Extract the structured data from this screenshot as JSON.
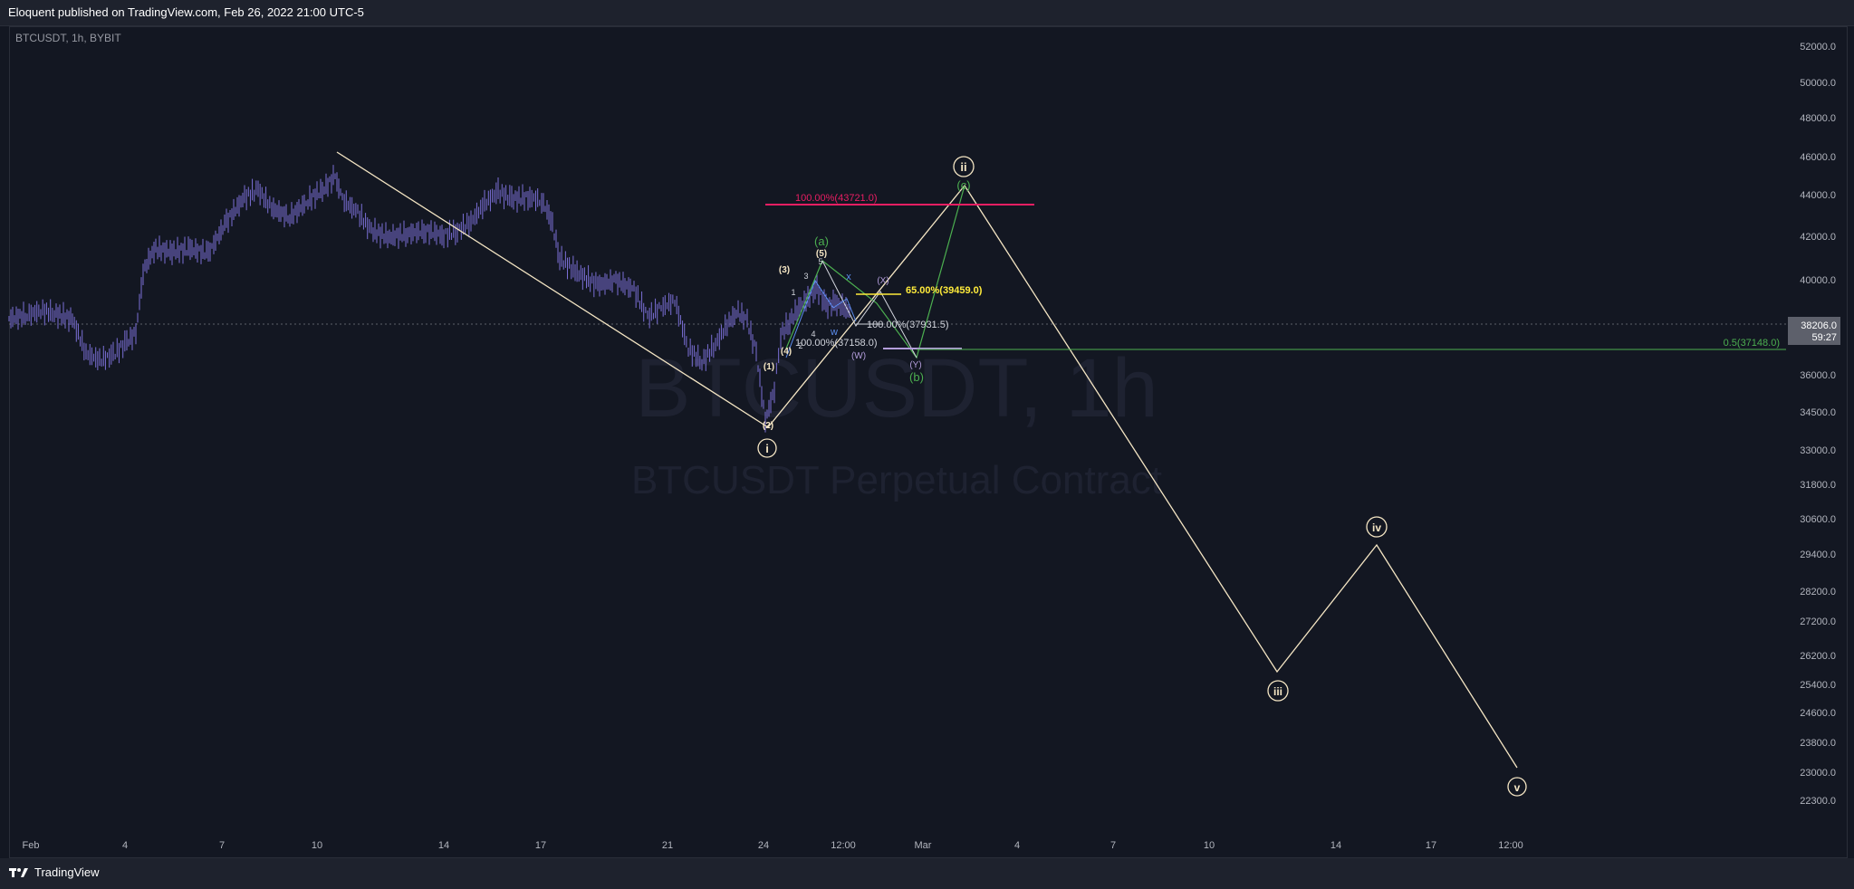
{
  "header": {
    "title": "Eloquent published on TradingView.com, Feb 26, 2022 21:00 UTC-5"
  },
  "symbol_info": "BTCUSDT, 1h, BYBIT",
  "watermark": {
    "symbol": "BTCUSDT, 1h",
    "description": "BTCUSDT Perpetual Contract"
  },
  "price_axis": {
    "labels": [
      "52000.0",
      "50000.0",
      "48000.0",
      "46000.0",
      "44000.0",
      "42000.0",
      "40000.0",
      "36000.0",
      "34500.0",
      "33000.0",
      "31800.0",
      "30600.0",
      "29400.0",
      "28200.0",
      "27200.0",
      "26200.0",
      "25400.0",
      "24600.0",
      "23800.0",
      "23000.0",
      "22300.0"
    ],
    "last_price": "38206.0",
    "countdown": "59:27"
  },
  "time_axis": {
    "labels": [
      "Feb",
      "4",
      "7",
      "10",
      "14",
      "17",
      "21",
      "24",
      "12:00",
      "Mar",
      "4",
      "7",
      "10",
      "14",
      "17",
      "12:00"
    ]
  },
  "annotations": {
    "fib_red": "100.00%(43721.0)",
    "fib_yellow": "65.00%(39459.0)",
    "fib_white1": "100.00%(37931.5)",
    "fib_white2": "100.00%(37158.0)",
    "fib_green": "0.5(37148.0)",
    "waves": {
      "i": "i",
      "ii": "ii",
      "iii": "iii",
      "iv": "iv",
      "v": "v",
      "w1": "(1)",
      "w2": "(2)",
      "w3": "(3)",
      "w4": "(4)",
      "w5": "(5)",
      "a": "(a)",
      "b": "(b)",
      "c": "(c)",
      "W": "(W)",
      "X": "(X)",
      "Y": "(Y)",
      "x_small": "x",
      "w_small": "w",
      "n1": "1",
      "n2": "2",
      "n3": "3",
      "n4": "4",
      "n5": "5"
    }
  },
  "footer": {
    "brand": "TradingView"
  },
  "colors": {
    "background": "#131722",
    "candles": "#7b6fd6",
    "wave_line": "#f5e6c4",
    "fib_red": "#e91e63",
    "fib_yellow": "#ffeb3b",
    "fib_green": "#4caf50",
    "last_price_bg": "#5d606b"
  }
}
